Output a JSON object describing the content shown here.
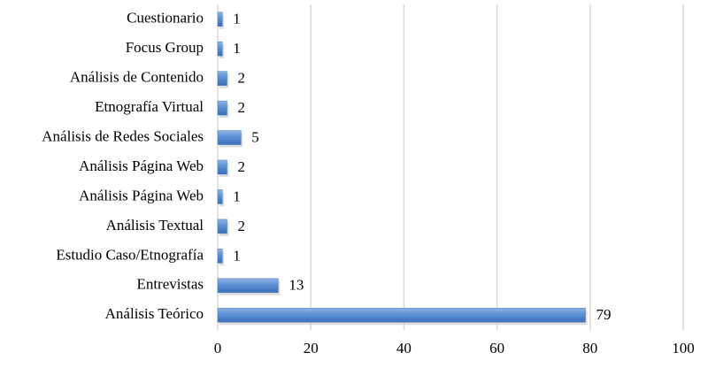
{
  "chart_data": {
    "type": "bar",
    "categories": [
      "Cuestionario",
      "Focus Group",
      "Análisis de Contenido",
      "Etnografía Virtual",
      "Análisis de Redes Sociales",
      "Análisis Página Web",
      "Análisis Página Web",
      "Análisis Textual",
      "Estudio Caso/Etnografía",
      "Entrevistas",
      "Análisis Teórico"
    ],
    "values": [
      1,
      1,
      2,
      2,
      5,
      2,
      1,
      2,
      1,
      13,
      79
    ],
    "color": "#4f81bd",
    "xlim": [
      0,
      100
    ],
    "xticks": [
      0,
      20,
      40,
      60,
      80,
      100
    ],
    "grid": true
  }
}
